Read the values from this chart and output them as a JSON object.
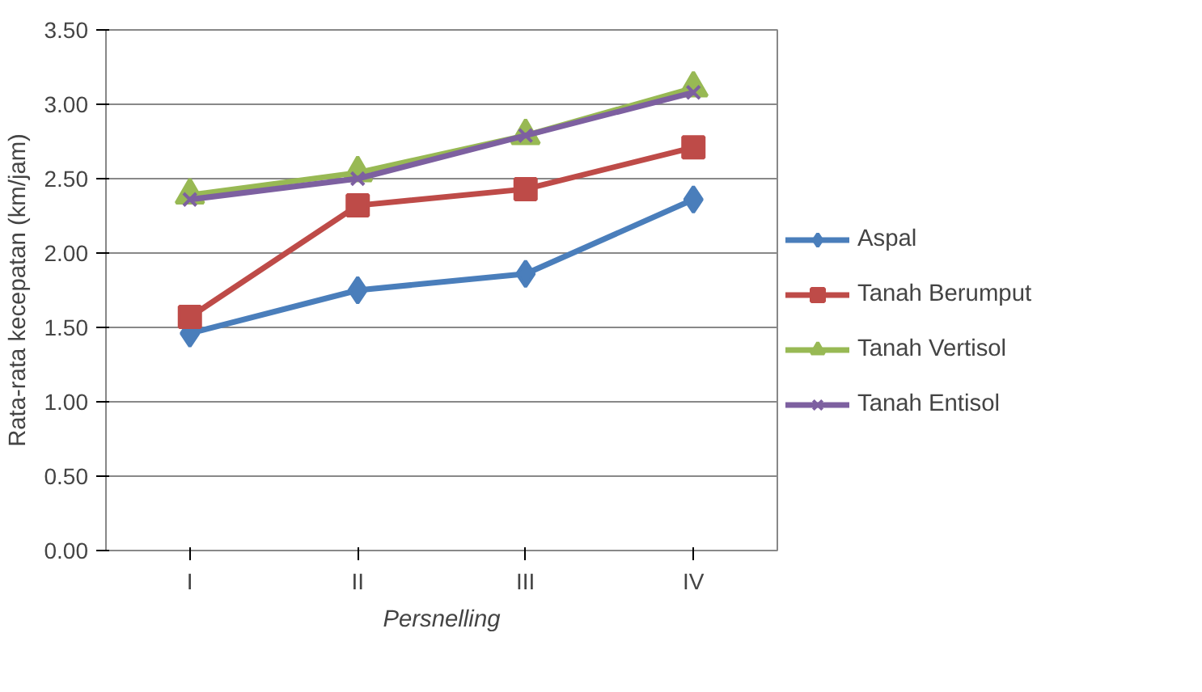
{
  "chart_data": {
    "type": "line",
    "xlabel": "Persnelling",
    "ylabel": "Rata-rata kecepatan (km/jam)",
    "categories": [
      "I",
      "II",
      "III",
      "IV"
    ],
    "series": [
      {
        "name": "Aspal",
        "color": "#4a7ebb",
        "marker": "diamond",
        "values": [
          1.46,
          1.75,
          1.86,
          2.36
        ]
      },
      {
        "name": "Tanah Berumput",
        "color": "#be4b48",
        "marker": "square",
        "values": [
          1.57,
          2.32,
          2.43,
          2.71
        ]
      },
      {
        "name": "Tanah Vertisol",
        "color": "#98b954",
        "marker": "triangle",
        "values": [
          2.39,
          2.54,
          2.79,
          3.11
        ]
      },
      {
        "name": "Tanah Entisol",
        "color": "#7d60a0",
        "marker": "cross",
        "values": [
          2.36,
          2.5,
          2.79,
          3.08
        ]
      }
    ],
    "ylim": [
      0,
      3.5
    ],
    "yticks": [
      {
        "value": 0,
        "label": "0.00"
      },
      {
        "value": 0.5,
        "label": "0.50"
      },
      {
        "value": 1,
        "label": "1.00"
      },
      {
        "value": 1.5,
        "label": "1.50"
      },
      {
        "value": 2,
        "label": "2.00"
      },
      {
        "value": 2.5,
        "label": "2.50"
      },
      {
        "value": 3,
        "label": "3.00"
      },
      {
        "value": 3.5,
        "label": "3.50"
      }
    ],
    "grid": "y",
    "legend": "right",
    "line_style": "solid"
  }
}
